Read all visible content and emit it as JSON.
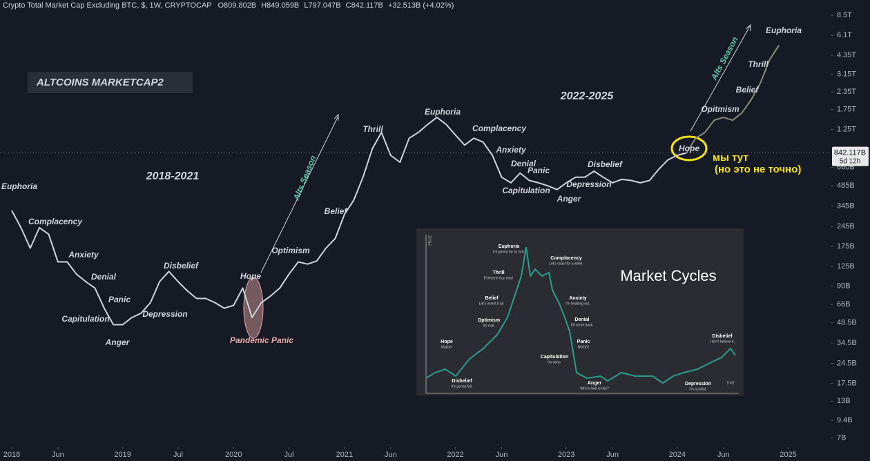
{
  "header": {
    "title": "Crypto Total Market Cap Excluding BTC, $, 1W, CRYPTOCAP",
    "ohlc": [
      {
        "label": "O",
        "value": "809.802B"
      },
      {
        "label": "H",
        "value": "849.059B"
      },
      {
        "label": "L",
        "value": "797.047B"
      },
      {
        "label": "C",
        "value": "842.117B"
      }
    ],
    "change": "+32.513B (+4.02%)"
  },
  "chart_data": {
    "type": "line",
    "log_scale": true,
    "badge": "ALTCOINS MARKETCAP2",
    "x": [
      "2018-01",
      "2018-02",
      "2018-03",
      "2018-04",
      "2018-05",
      "2018-06",
      "2018-07",
      "2018-08",
      "2018-09",
      "2018-10",
      "2018-11",
      "2018-12",
      "2019-01",
      "2019-02",
      "2019-03",
      "2019-04",
      "2019-05",
      "2019-06",
      "2019-07",
      "2019-08",
      "2019-09",
      "2019-10",
      "2019-11",
      "2019-12",
      "2020-01",
      "2020-02",
      "2020-03",
      "2020-04",
      "2020-05",
      "2020-06",
      "2020-07",
      "2020-08",
      "2020-09",
      "2020-10",
      "2020-11",
      "2020-12",
      "2021-01",
      "2021-02",
      "2021-03",
      "2021-04",
      "2021-05",
      "2021-06",
      "2021-07",
      "2021-08",
      "2021-09",
      "2021-10",
      "2021-11",
      "2021-12",
      "2022-01",
      "2022-02",
      "2022-03",
      "2022-04",
      "2022-05",
      "2022-06",
      "2022-07",
      "2022-08",
      "2022-09",
      "2022-10",
      "2022-11",
      "2022-12",
      "2023-01",
      "2023-02",
      "2023-03",
      "2023-04",
      "2023-05",
      "2023-06",
      "2023-07",
      "2023-08",
      "2023-09",
      "2023-10",
      "2023-11",
      "2023-12",
      "2024-01",
      "2024-02",
      "2024-03",
      "2024-04",
      "2024-05",
      "2024-06",
      "2024-07",
      "2024-08",
      "2024-09",
      "2024-10",
      "2024-11",
      "2024-12"
    ],
    "series": [
      {
        "color": "#d1d4dc",
        "values": [
          320,
          240,
          170,
          240,
          215,
          135,
          135,
          110,
          97,
          87,
          62,
          47,
          47,
          53,
          57,
          68,
          97,
          115,
          97,
          83,
          73,
          73,
          68,
          62,
          65,
          87,
          53,
          68,
          76,
          87,
          110,
          135,
          130,
          137,
          170,
          200,
          300,
          380,
          560,
          900,
          1190,
          810,
          720,
          1080,
          1190,
          1360,
          1530,
          1360,
          1140,
          960,
          1080,
          1010,
          810,
          560,
          510,
          600,
          530,
          510,
          485,
          455,
          510,
          560,
          560,
          620,
          560,
          510,
          540,
          530,
          510,
          530,
          640,
          750,
          810,
          842,
          null,
          null,
          null,
          null,
          null,
          null,
          null,
          null,
          null,
          null
        ]
      },
      {
        "color": "#8c8a78",
        "values": [
          null,
          null,
          null,
          null,
          null,
          null,
          null,
          null,
          null,
          null,
          null,
          null,
          null,
          null,
          null,
          null,
          null,
          null,
          null,
          null,
          null,
          null,
          null,
          null,
          null,
          null,
          null,
          null,
          null,
          null,
          null,
          null,
          null,
          null,
          null,
          null,
          null,
          null,
          null,
          null,
          null,
          null,
          null,
          null,
          null,
          null,
          null,
          null,
          null,
          null,
          null,
          null,
          null,
          null,
          null,
          null,
          null,
          null,
          null,
          null,
          null,
          null,
          null,
          null,
          null,
          null,
          null,
          null,
          null,
          null,
          null,
          null,
          null,
          842,
          1080,
          1190,
          1460,
          1530,
          1460,
          1650,
          2060,
          2730,
          4040,
          5140
        ]
      }
    ],
    "xlim": [
      "2017-12",
      "2025-05"
    ],
    "xticks": [
      {
        "value": "2018-01",
        "label": "2018"
      },
      {
        "value": "2018-06",
        "label": "Jun"
      },
      {
        "value": "2019-01",
        "label": "2019"
      },
      {
        "value": "2019-07",
        "label": "Jul"
      },
      {
        "value": "2020-01",
        "label": "2020"
      },
      {
        "value": "2020-07",
        "label": "Jul"
      },
      {
        "value": "2021-01",
        "label": "2021"
      },
      {
        "value": "2021-06",
        "label": "Jun"
      },
      {
        "value": "2022-01",
        "label": "2022"
      },
      {
        "value": "2022-06",
        "label": "Jun"
      },
      {
        "value": "2023-01",
        "label": "2023"
      },
      {
        "value": "2023-06",
        "label": "Jun"
      },
      {
        "value": "2024-01",
        "label": "2024"
      },
      {
        "value": "2024-06",
        "label": "Jun"
      },
      {
        "value": "2025-01",
        "label": "2025"
      }
    ],
    "ylim": [
      6,
      11000
    ],
    "yticks": [
      {
        "value": 8500,
        "label": "8.5T"
      },
      {
        "value": 6100,
        "label": "6.1T"
      },
      {
        "value": 4350,
        "label": "4.35T"
      },
      {
        "value": 3150,
        "label": "3.15T"
      },
      {
        "value": 2350,
        "label": "2.35T"
      },
      {
        "value": 1750,
        "label": "1.75T"
      },
      {
        "value": 1250,
        "label": "1.25T"
      },
      {
        "value": 660,
        "label": "660B"
      },
      {
        "value": 485,
        "label": "485B"
      },
      {
        "value": 345,
        "label": "345B"
      },
      {
        "value": 245,
        "label": "245B"
      },
      {
        "value": 175,
        "label": "175B"
      },
      {
        "value": 125,
        "label": "125B"
      },
      {
        "value": 90,
        "label": "90B"
      },
      {
        "value": 66,
        "label": "66B"
      },
      {
        "value": 48.5,
        "label": "48.5B"
      },
      {
        "value": 34.5,
        "label": "34.5B"
      },
      {
        "value": 24.5,
        "label": "24.5B"
      },
      {
        "value": 17.5,
        "label": "17.5B"
      },
      {
        "value": 13,
        "label": "13B"
      },
      {
        "value": 9.4,
        "label": "9.4B"
      },
      {
        "value": 7,
        "label": "7B"
      }
    ],
    "last_price": {
      "value": 842.117,
      "label": "842.117B"
    },
    "countdown": "5d 12h",
    "annotations": [
      {
        "text": "Euphoria",
        "color": "#d1d4dc"
      },
      {
        "text": "Complacency",
        "color": "#d1d4dc"
      },
      {
        "text": "Anxiety",
        "color": "#d1d4dc"
      },
      {
        "text": "Denial",
        "color": "#d1d4dc"
      },
      {
        "text": "Panic",
        "color": "#d1d4dc"
      },
      {
        "text": "Capitulation",
        "color": "#d1d4dc"
      },
      {
        "text": "Anger",
        "color": "#d1d4dc"
      },
      {
        "text": "Depression",
        "color": "#d1d4dc"
      },
      {
        "text": "Disbelief",
        "color": "#d1d4dc"
      },
      {
        "text": "Hope",
        "color": "#d1d4dc"
      },
      {
        "text": "Pandemic Panic",
        "color": "#e8a9a9"
      },
      {
        "text": "Optimism",
        "color": "#d1d4dc"
      },
      {
        "text": "Belief",
        "color": "#d1d4dc"
      },
      {
        "text": "Thrill",
        "color": "#d1d4dc"
      },
      {
        "text": "Euphoria",
        "color": "#d1d4dc"
      },
      {
        "text": "Complacency",
        "color": "#d1d4dc"
      },
      {
        "text": "Anxiety",
        "color": "#d1d4dc"
      },
      {
        "text": "Denial",
        "color": "#d1d4dc"
      },
      {
        "text": "Panic",
        "color": "#d1d4dc"
      },
      {
        "text": "Capitulation",
        "color": "#d1d4dc"
      },
      {
        "text": "Anger",
        "color": "#d1d4dc"
      },
      {
        "text": "Depression",
        "color": "#d1d4dc"
      },
      {
        "text": "Disbelief",
        "color": "#d1d4dc"
      },
      {
        "text": "Hope",
        "color": "#d1d4dc"
      },
      {
        "text": "Opitmism",
        "color": "#d1d4dc"
      },
      {
        "text": "Belief",
        "color": "#d1d4dc"
      },
      {
        "text": "Thrill",
        "color": "#d1d4dc"
      },
      {
        "text": "Euphoria",
        "color": "#d1d4dc"
      },
      {
        "text": "2018-2021",
        "color": "#d1d4dc"
      },
      {
        "text": "2022-2025",
        "color": "#d1d4dc"
      },
      {
        "text": "Alts Season",
        "color": "#5fc9a8"
      },
      {
        "text": "Alts Season",
        "color": "#5fc9a8"
      },
      {
        "text": "мы тут",
        "color": "#f5e50a"
      },
      {
        "text": "(но это не точно)",
        "color": "#f5e50a"
      }
    ]
  },
  "inset": {
    "title": "Market Cycles",
    "y_label": "PRICE",
    "x_label": "TIME",
    "phases": [
      {
        "label": "Hope",
        "note": "Maybe!"
      },
      {
        "label": "Disbelief",
        "note": "It's gonna fail."
      },
      {
        "label": "Optimism",
        "note": "It's real."
      },
      {
        "label": "Belief",
        "note": "Let's invest it all."
      },
      {
        "label": "Thrill",
        "note": "Everyone buy now!"
      },
      {
        "label": "Euphoria",
        "note": "I'm gonna be so rich."
      },
      {
        "label": "Complacency",
        "note": "Let's coast for a while."
      },
      {
        "label": "Anxiety",
        "note": "I'm freaking out."
      },
      {
        "label": "Denial",
        "note": "It'll come back."
      },
      {
        "label": "Panic",
        "note": "NOOO!"
      },
      {
        "label": "Capitulation",
        "note": "I'm done."
      },
      {
        "label": "Anger",
        "note": "Who's fault is this?"
      },
      {
        "label": "Depression",
        "note": "I'm an idiot."
      },
      {
        "label": "Disbelief",
        "note": "I don't believe it."
      }
    ]
  }
}
